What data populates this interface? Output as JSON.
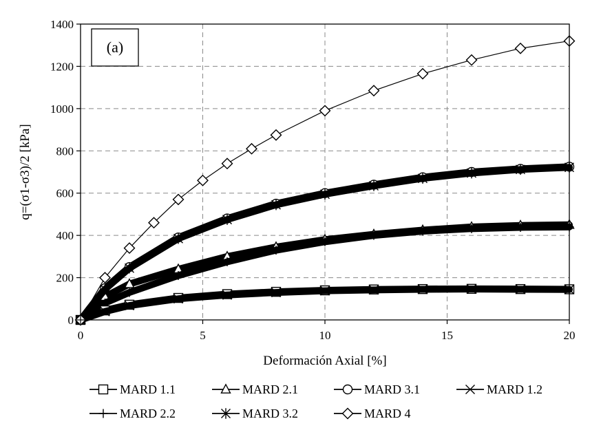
{
  "chart_data": {
    "type": "line",
    "panel_label": "(a)",
    "xlabel": "Deformación Axial [%]",
    "ylabel": "q=(σ1-σ3)/2 [kPa]",
    "xlim": [
      0,
      20
    ],
    "ylim": [
      0,
      1400
    ],
    "x_ticks": [
      "0",
      "5",
      "10",
      "15",
      "20"
    ],
    "y_ticks": [
      "0",
      "200",
      "400",
      "600",
      "800",
      "1000",
      "1200",
      "1400"
    ],
    "grid": true,
    "legend_position": "bottom",
    "series": [
      {
        "name": "MARD 1.1",
        "marker": "square",
        "x": [
          0,
          1,
          2,
          4,
          6,
          8,
          10,
          12,
          14,
          16,
          18,
          20
        ],
        "y": [
          0,
          45,
          72,
          104,
          122,
          133,
          140,
          144,
          146,
          147,
          146,
          145
        ]
      },
      {
        "name": "MARD 2.1",
        "marker": "triangle",
        "x": [
          0,
          1,
          2,
          4,
          6,
          8,
          10,
          12,
          14,
          16,
          18,
          20
        ],
        "y": [
          0,
          110,
          170,
          240,
          300,
          345,
          380,
          405,
          425,
          440,
          447,
          450
        ]
      },
      {
        "name": "MARD 3.1",
        "marker": "circle",
        "x": [
          0,
          1,
          2,
          4,
          6,
          8,
          10,
          12,
          14,
          16,
          18,
          20
        ],
        "y": [
          0,
          150,
          250,
          390,
          480,
          550,
          600,
          640,
          675,
          700,
          715,
          725
        ]
      },
      {
        "name": "MARD 1.2",
        "marker": "x",
        "x": [
          0,
          1,
          2,
          4,
          6,
          8,
          10,
          12,
          14,
          16,
          18,
          20
        ],
        "y": [
          0,
          40,
          68,
          100,
          118,
          130,
          138,
          142,
          145,
          146,
          145,
          144
        ]
      },
      {
        "name": "MARD 2.2",
        "marker": "plus",
        "x": [
          0,
          1,
          2,
          4,
          6,
          8,
          10,
          12,
          14,
          16,
          18,
          20
        ],
        "y": [
          0,
          80,
          130,
          210,
          275,
          330,
          370,
          400,
          420,
          432,
          438,
          440
        ]
      },
      {
        "name": "MARD 3.2",
        "marker": "asterisk",
        "x": [
          0,
          1,
          2,
          4,
          6,
          8,
          10,
          12,
          14,
          16,
          18,
          20
        ],
        "y": [
          0,
          145,
          245,
          385,
          475,
          545,
          595,
          635,
          670,
          695,
          712,
          722
        ]
      },
      {
        "name": "MARD 4",
        "marker": "diamond",
        "x": [
          0,
          1,
          2,
          3,
          4,
          5,
          6,
          7,
          8,
          10,
          12,
          14,
          16,
          18,
          20
        ],
        "y": [
          0,
          200,
          340,
          460,
          570,
          660,
          740,
          810,
          875,
          990,
          1085,
          1165,
          1230,
          1285,
          1320
        ]
      }
    ]
  }
}
